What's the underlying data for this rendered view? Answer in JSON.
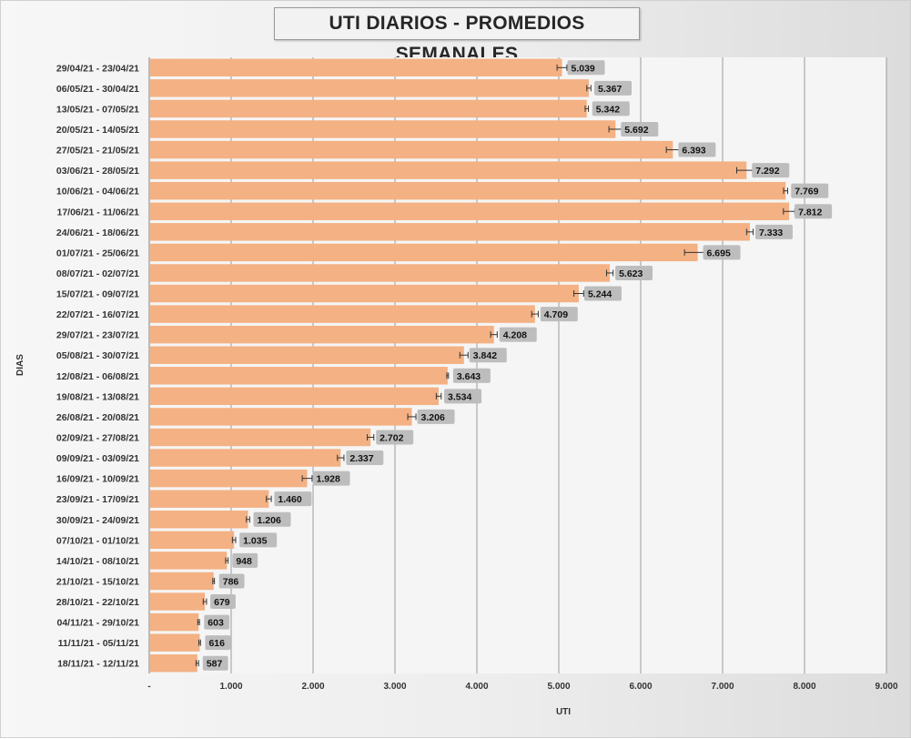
{
  "chart_data": {
    "type": "bar",
    "orientation": "horizontal",
    "title": "UTI DIARIOS - PROMEDIOS SEMANALES",
    "xlabel": "UTI",
    "ylabel": "DIAS",
    "xlim": [
      0,
      9000
    ],
    "xticks": [
      0,
      1000,
      2000,
      3000,
      4000,
      5000,
      6000,
      7000,
      8000,
      9000
    ],
    "xtick_labels": [
      "-",
      "1.000",
      "2.000",
      "3.000",
      "4.000",
      "5.000",
      "6.000",
      "7.000",
      "8.000",
      "9.000"
    ],
    "grid": "vertical",
    "bar_color": "#f4b183",
    "categories": [
      "29/04/21 - 23/04/21",
      "06/05/21 - 30/04/21",
      "13/05/21 - 07/05/21",
      "20/05/21 - 14/05/21",
      "27/05/21 - 21/05/21",
      "03/06/21 - 28/05/21",
      "10/06/21 - 04/06/21",
      "17/06/21 - 11/06/21",
      "24/06/21 - 18/06/21",
      "01/07/21 - 25/06/21",
      "08/07/21 - 02/07/21",
      "15/07/21 - 09/07/21",
      "22/07/21 - 16/07/21",
      "29/07/21 - 23/07/21",
      "05/08/21 - 30/07/21",
      "12/08/21 - 06/08/21",
      "19/08/21 - 13/08/21",
      "26/08/21 - 20/08/21",
      "02/09/21 - 27/08/21",
      "09/09/21 - 03/09/21",
      "16/09/21 - 10/09/21",
      "23/09/21 - 17/09/21",
      "30/09/21 - 24/09/21",
      "07/10/21 - 01/10/21",
      "14/10/21 - 08/10/21",
      "21/10/21 - 15/10/21",
      "28/10/21 - 22/10/21",
      "04/11/21 - 29/10/21",
      "11/11/21 - 05/11/21",
      "18/11/21 - 12/11/21"
    ],
    "values": [
      5039,
      5367,
      5342,
      5692,
      6393,
      7292,
      7769,
      7812,
      7333,
      6695,
      5623,
      5244,
      4709,
      4208,
      3842,
      3643,
      3534,
      3206,
      2702,
      2337,
      1928,
      1460,
      1206,
      1035,
      948,
      786,
      679,
      603,
      616,
      587
    ],
    "value_labels": [
      "5.039",
      "5.367",
      "5.342",
      "5.692",
      "6.393",
      "7.292",
      "7.769",
      "7.812",
      "7.333",
      "6.695",
      "5.623",
      "5.244",
      "4.709",
      "4.208",
      "3.842",
      "3.643",
      "3.534",
      "3.206",
      "2.702",
      "2.337",
      "1.928",
      "1.460",
      "1.206",
      "1.035",
      "948",
      "786",
      "679",
      "603",
      "616",
      "587"
    ],
    "error_bars": [
      60,
      25,
      20,
      80,
      80,
      120,
      25,
      70,
      40,
      160,
      40,
      60,
      40,
      40,
      50,
      10,
      30,
      50,
      40,
      40,
      60,
      30,
      20,
      20,
      15,
      10,
      20,
      10,
      10,
      15
    ]
  }
}
